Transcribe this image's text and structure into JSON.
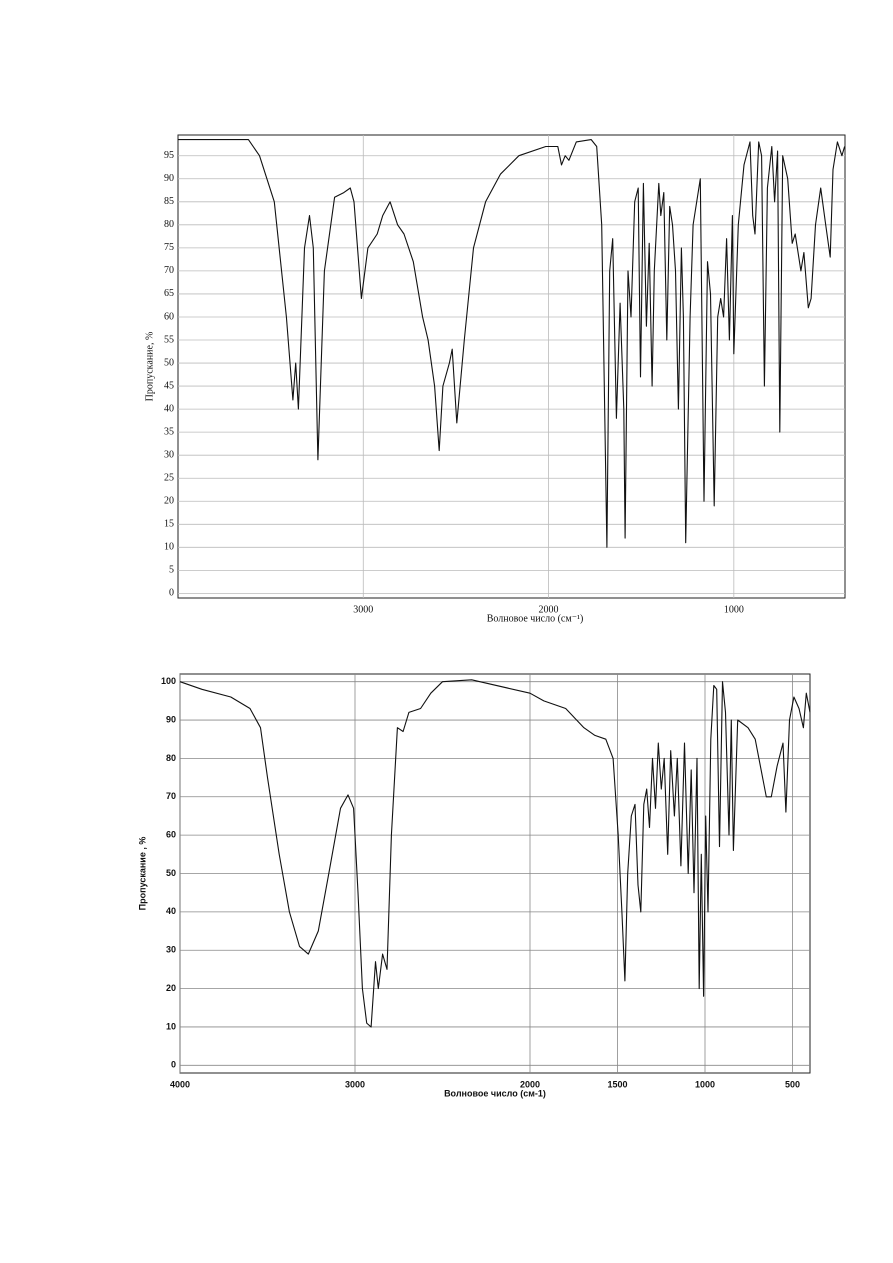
{
  "chart_data": [
    {
      "type": "line",
      "x_label": "Волновое число (см⁻¹)",
      "y_label": "Пропускание, %",
      "xlim": [
        4000,
        400
      ],
      "ylim": [
        -1,
        99.5
      ],
      "xticks": [
        3000,
        2000,
        1000
      ],
      "yticks": [
        0,
        5,
        10,
        15,
        20,
        25,
        30,
        35,
        40,
        45,
        50,
        55,
        60,
        65,
        70,
        75,
        80,
        85,
        90,
        95
      ],
      "grid": true,
      "color": "#111111",
      "x": [
        4000,
        3620,
        3560,
        3480,
        3415,
        3380,
        3365,
        3350,
        3317,
        3290,
        3270,
        3245,
        3210,
        3155,
        3105,
        3070,
        3050,
        3010,
        2975,
        2925,
        2895,
        2855,
        2815,
        2780,
        2730,
        2680,
        2650,
        2615,
        2590,
        2570,
        2535,
        2520,
        2495,
        2455,
        2405,
        2340,
        2260,
        2160,
        2015,
        1950,
        1930,
        1910,
        1890,
        1850,
        1770,
        1740,
        1713,
        1685,
        1670,
        1654,
        1634,
        1614,
        1594,
        1587,
        1571,
        1555,
        1535,
        1516,
        1504,
        1488,
        1472,
        1457,
        1441,
        1429,
        1405,
        1394,
        1378,
        1362,
        1346,
        1331,
        1315,
        1299,
        1283,
        1272,
        1260,
        1236,
        1220,
        1181,
        1161,
        1142,
        1126,
        1106,
        1087,
        1071,
        1055,
        1039,
        1024,
        1008,
        1000,
        976,
        945,
        913,
        898,
        886,
        866,
        850,
        835,
        819,
        795,
        780,
        764,
        752,
        736,
        709,
        685,
        669,
        638,
        622,
        598,
        583,
        559,
        531,
        504,
        480,
        465,
        441,
        417,
        402
      ],
      "values": [
        98.5,
        98.5,
        95,
        85,
        60,
        42,
        50,
        40,
        75,
        82,
        75,
        29,
        70,
        86,
        87,
        88,
        85,
        64,
        75,
        78,
        82,
        85,
        80,
        78,
        72,
        60,
        55,
        45,
        31,
        45,
        50,
        53,
        37,
        55,
        75,
        85,
        91,
        95,
        97,
        97,
        93,
        95,
        94,
        98,
        98.5,
        97,
        80,
        10,
        70,
        77,
        38,
        63,
        40,
        12,
        70,
        60,
        85,
        88,
        47,
        89,
        58,
        76,
        45,
        70,
        89,
        82,
        87,
        55,
        84,
        80,
        70,
        40,
        75,
        60,
        11,
        60,
        80,
        90,
        20,
        72,
        65,
        19,
        60,
        64,
        60,
        77,
        55,
        82,
        52,
        80,
        93,
        98,
        82,
        78,
        98,
        95,
        45,
        88,
        97,
        85,
        96,
        35,
        95,
        90,
        76,
        78,
        70,
        74,
        62,
        64,
        80,
        88,
        80,
        73,
        92,
        98,
        95,
        97
      ]
    },
    {
      "type": "line",
      "x_label": "Волновое число (см-1)",
      "y_label": "Пропускание , %",
      "xlim": [
        4000,
        400
      ],
      "ylim": [
        -2,
        102
      ],
      "xticks": [
        4000,
        3000,
        2000,
        1500,
        1000,
        500
      ],
      "yticks": [
        0,
        10,
        20,
        30,
        40,
        50,
        60,
        70,
        80,
        90,
        100
      ],
      "grid": true,
      "color": "#111111",
      "x": [
        4000,
        3875,
        3710,
        3600,
        3540,
        3500,
        3433,
        3375,
        3317,
        3267,
        3210,
        3150,
        3083,
        3040,
        3008,
        2983,
        2958,
        2933,
        2908,
        2883,
        2867,
        2842,
        2817,
        2792,
        2758,
        2725,
        2692,
        2625,
        2567,
        2500,
        2333,
        2000,
        1921,
        1796,
        1692,
        1629,
        1567,
        1525,
        1496,
        1475,
        1458,
        1442,
        1421,
        1400,
        1383,
        1367,
        1350,
        1333,
        1317,
        1300,
        1283,
        1267,
        1250,
        1233,
        1213,
        1196,
        1175,
        1158,
        1138,
        1117,
        1096,
        1079,
        1063,
        1046,
        1033,
        1021,
        1008,
        996,
        983,
        967,
        950,
        933,
        917,
        900,
        883,
        863,
        850,
        838,
        813,
        754,
        713,
        650,
        621,
        588,
        554,
        538,
        517,
        492,
        463,
        438,
        421,
        400
      ],
      "values": [
        100,
        98,
        96,
        93,
        88,
        75,
        55,
        40,
        31,
        29,
        35,
        50,
        67,
        70.5,
        67,
        45,
        20,
        11,
        10,
        27,
        20,
        29,
        25,
        60,
        88,
        87,
        92,
        93,
        97,
        100,
        100.5,
        97,
        95,
        93,
        88,
        86,
        85,
        80,
        60,
        40,
        22,
        50,
        65,
        68,
        47,
        40,
        68,
        72,
        62,
        80,
        67,
        84,
        72,
        80,
        55,
        82,
        65,
        80,
        52,
        84,
        50,
        77,
        45,
        80,
        20,
        55,
        18,
        65,
        40,
        85,
        99,
        98,
        57,
        100,
        92,
        60,
        90,
        56,
        90,
        88,
        85,
        70,
        70,
        78,
        84,
        66,
        90,
        96,
        93,
        88,
        97,
        92
      ]
    }
  ]
}
